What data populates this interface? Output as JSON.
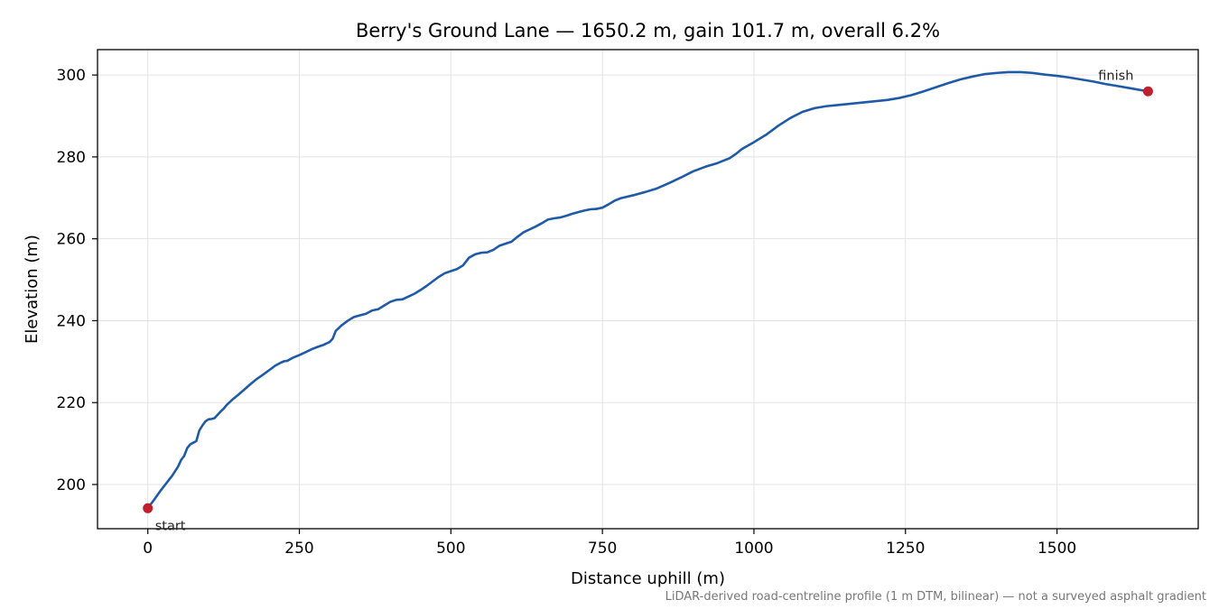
{
  "chart_data": {
    "type": "line",
    "title": "Berry's Ground Lane — 1650.2 m, gain 101.7 m, overall 6.2%",
    "xlabel": "Distance uphill (m)",
    "ylabel": "Elevation (m)",
    "xlim": [
      -83,
      1733
    ],
    "ylim": [
      189.2,
      306.2
    ],
    "xticks": [
      0,
      250,
      500,
      750,
      1000,
      1250,
      1500
    ],
    "yticks": [
      200,
      220,
      240,
      260,
      280,
      300
    ],
    "grid": true,
    "line_color": "#1f5aa8",
    "marker_color": "#c0202e",
    "series": [
      {
        "x": [
          0,
          10,
          20,
          30,
          40,
          50,
          55,
          60,
          65,
          70,
          75,
          80,
          85,
          90,
          95,
          100,
          105,
          110,
          115,
          120,
          125,
          130,
          140,
          150,
          160,
          170,
          180,
          190,
          200,
          210,
          220,
          225,
          230,
          240,
          250,
          260,
          270,
          280,
          290,
          300,
          305,
          310,
          320,
          330,
          340,
          350,
          360,
          370,
          380,
          390,
          400,
          410,
          420,
          430,
          440,
          450,
          460,
          470,
          480,
          490,
          500,
          510,
          520,
          530,
          540,
          550,
          560,
          570,
          580,
          590,
          600,
          610,
          620,
          630,
          640,
          650,
          660,
          670,
          680,
          690,
          700,
          710,
          720,
          730,
          740,
          750,
          760,
          770,
          780,
          800,
          820,
          840,
          860,
          880,
          900,
          920,
          940,
          960,
          970,
          980,
          1000,
          1020,
          1040,
          1060,
          1080,
          1100,
          1120,
          1140,
          1160,
          1180,
          1200,
          1220,
          1240,
          1260,
          1280,
          1300,
          1320,
          1340,
          1360,
          1380,
          1400,
          1420,
          1440,
          1460,
          1480,
          1500,
          1520,
          1540,
          1560,
          1580,
          1600,
          1620,
          1650.2
        ],
        "y": [
          194.2,
          196.2,
          198.3,
          200.2,
          202.1,
          204.4,
          206.0,
          207.0,
          208.9,
          209.8,
          210.2,
          210.6,
          213.2,
          214.4,
          215.4,
          215.9,
          216.0,
          216.2,
          217.0,
          217.8,
          218.5,
          219.4,
          220.8,
          222.0,
          223.3,
          224.6,
          225.8,
          226.8,
          227.9,
          229.0,
          229.8,
          230.1,
          230.2,
          231.0,
          231.6,
          232.3,
          233.0,
          233.6,
          234.1,
          234.8,
          235.6,
          237.5,
          238.9,
          240.0,
          240.9,
          241.3,
          241.7,
          242.5,
          242.8,
          243.7,
          244.6,
          245.1,
          245.2,
          245.9,
          246.6,
          247.5,
          248.5,
          249.6,
          250.7,
          251.6,
          252.1,
          252.6,
          253.5,
          255.4,
          256.2,
          256.6,
          256.7,
          257.3,
          258.3,
          258.8,
          259.3,
          260.5,
          261.6,
          262.3,
          263.0,
          263.8,
          264.7,
          265.0,
          265.2,
          265.6,
          266.1,
          266.5,
          266.9,
          267.2,
          267.3,
          267.6,
          268.4,
          269.3,
          269.9,
          270.6,
          271.4,
          272.3,
          273.6,
          275.0,
          276.5,
          277.6,
          278.5,
          279.7,
          280.7,
          281.9,
          283.6,
          285.4,
          287.6,
          289.5,
          291.0,
          291.9,
          292.4,
          292.7,
          293.0,
          293.3,
          293.6,
          293.9,
          294.4,
          295.1,
          296.0,
          297.0,
          298.0,
          298.9,
          299.6,
          300.2,
          300.5,
          300.7,
          300.7,
          300.5,
          300.1,
          299.8,
          299.4,
          298.9,
          298.4,
          297.8,
          297.3,
          296.8,
          296.0
        ]
      }
    ],
    "annotations": [
      {
        "text": "start",
        "x": 0,
        "y": 194.2,
        "anchor": "below-right"
      },
      {
        "text": "finish",
        "x": 1650.2,
        "y": 296.0,
        "anchor": "above-left"
      }
    ],
    "footnote": "LiDAR-derived road-centreline profile (1 m DTM, bilinear) — not a surveyed asphalt gradient"
  }
}
